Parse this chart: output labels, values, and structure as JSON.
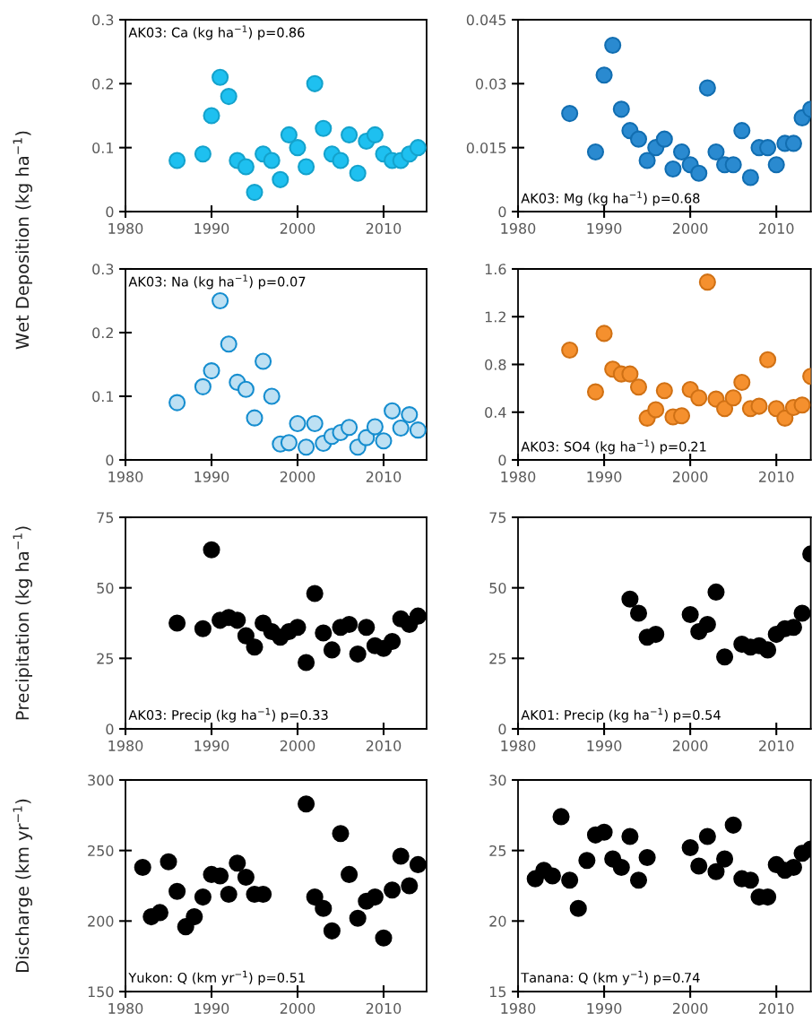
{
  "chart_data": [
    {
      "type": "scatter",
      "ylabel": "Wet Deposition (kg ha$^{−1}$)",
      "annotations": [
        "AK03: Ca (kg ha$^{−1}$) p=0.86"
      ],
      "marker": "circle",
      "xlim": [
        1980,
        2015
      ],
      "xticks": [
        1980,
        1990,
        2000,
        2010
      ],
      "ylim": [
        0,
        0.3
      ],
      "yticks": [
        0,
        0.1,
        0.2,
        0.3
      ],
      "x": [
        1986,
        1989,
        1990,
        1991,
        1992,
        1993,
        1994,
        1995,
        1996,
        1997,
        1998,
        1999,
        2000,
        2001,
        2002,
        2003,
        2004,
        2005,
        2006,
        2007,
        2008,
        2009,
        2010,
        2011,
        2012,
        2013,
        2014
      ],
      "series": [
        {
          "color": "#1ec0f0",
          "values": [
            0.08,
            0.09,
            0.15,
            0.21,
            0.18,
            0.08,
            0.07,
            0.03,
            0.09,
            0.08,
            0.05,
            0.12,
            0.1,
            0.07,
            0.2,
            0.13,
            0.09,
            0.08,
            0.12,
            0.06,
            0.11,
            0.12,
            0.09,
            0.08,
            0.08,
            0.09,
            0.1
          ]
        }
      ]
    },
    {
      "type": "scatter",
      "annotations": [
        "AK03: Mg (kg ha$^{−1}$) p=0.68"
      ],
      "marker": "circle",
      "xlim": [
        1980,
        2014
      ],
      "xticks": [
        1980,
        1990,
        2000,
        2010
      ],
      "ylim": [
        0,
        0.045
      ],
      "yticks": [
        0,
        0.015,
        0.03,
        0.045
      ],
      "x": [
        1986,
        1989,
        1990,
        1991,
        1992,
        1993,
        1994,
        1995,
        1996,
        1997,
        1998,
        1999,
        2000,
        2001,
        2002,
        2003,
        2004,
        2005,
        2006,
        2007,
        2008,
        2009,
        2010,
        2011,
        2012,
        2013,
        2014
      ],
      "series": [
        {
          "color": "#2a8ad0",
          "values": [
            0.023,
            0.014,
            0.032,
            0.039,
            0.024,
            0.019,
            0.017,
            0.012,
            0.015,
            0.017,
            0.01,
            0.014,
            0.011,
            0.009,
            0.029,
            0.014,
            0.011,
            0.011,
            0.019,
            0.008,
            0.015,
            0.015,
            0.011,
            0.016,
            0.016,
            0.022,
            0.024
          ]
        }
      ]
    },
    {
      "type": "scatter",
      "annotations": [
        "AK03: Na (kg ha$^{−1}$) p=0.07"
      ],
      "marker": "circle",
      "xlim": [
        1980,
        2015
      ],
      "xticks": [
        1980,
        1990,
        2000,
        2010
      ],
      "ylim": [
        0,
        0.3
      ],
      "yticks": [
        0,
        0.1,
        0.2,
        0.3
      ],
      "x": [
        1986,
        1989,
        1990,
        1991,
        1992,
        1993,
        1994,
        1995,
        1996,
        1997,
        1998,
        1999,
        2000,
        2001,
        2002,
        2003,
        2004,
        2005,
        2006,
        2007,
        2008,
        2009,
        2010,
        2011,
        2012,
        2013,
        2014
      ],
      "series": [
        {
          "color": "#bde0f3",
          "values": [
            0.09,
            0.115,
            0.14,
            0.25,
            0.182,
            0.122,
            0.111,
            0.066,
            0.155,
            0.1,
            0.025,
            0.027,
            0.057,
            0.02,
            0.057,
            0.026,
            0.037,
            0.043,
            0.051,
            0.02,
            0.035,
            0.052,
            0.03,
            0.077,
            0.05,
            0.071,
            0.047
          ]
        }
      ]
    },
    {
      "type": "scatter",
      "annotations": [
        "AK03: SO4 (kg ha$^{−1}$) p=0.21"
      ],
      "marker": "circle",
      "xlim": [
        1980,
        2014
      ],
      "xticks": [
        1980,
        1990,
        2000,
        2010
      ],
      "ylim": [
        0,
        1.6
      ],
      "yticks": [
        0,
        0.4,
        0.8,
        1.2,
        1.6
      ],
      "x": [
        1986,
        1989,
        1990,
        1991,
        1992,
        1993,
        1994,
        1995,
        1996,
        1997,
        1998,
        1999,
        2000,
        2001,
        2002,
        2003,
        2004,
        2005,
        2006,
        2007,
        2008,
        2009,
        2010,
        2011,
        2012,
        2013,
        2014
      ],
      "series": [
        {
          "color": "#f5902e",
          "values": [
            0.92,
            0.57,
            1.06,
            0.76,
            0.72,
            0.72,
            0.61,
            0.35,
            0.42,
            0.58,
            0.36,
            0.37,
            0.59,
            0.52,
            1.49,
            0.51,
            0.43,
            0.52,
            0.65,
            0.43,
            0.45,
            0.84,
            0.43,
            0.35,
            0.44,
            0.46,
            0.7
          ]
        }
      ]
    },
    {
      "type": "scatter",
      "ylabel": "Precipitation (kg ha$^{−1}$)",
      "annotations": [
        "AK03: Precip (kg ha$^{−1}$) p=0.33"
      ],
      "marker": "circle",
      "xlim": [
        1980,
        2015
      ],
      "xticks": [
        1980,
        1990,
        2000,
        2010
      ],
      "ylim": [
        0,
        75
      ],
      "yticks": [
        0,
        25,
        50,
        75
      ],
      "x": [
        1986,
        1989,
        1990,
        1991,
        1992,
        1993,
        1994,
        1995,
        1996,
        1997,
        1998,
        1999,
        2000,
        2001,
        2002,
        2003,
        2004,
        2005,
        2006,
        2007,
        2008,
        2009,
        2010,
        2011,
        2012,
        2013,
        2014
      ],
      "series": [
        {
          "color": "#000000",
          "values": [
            37.5,
            35.5,
            63.5,
            38.5,
            39.5,
            38.5,
            33,
            29,
            37.5,
            34.5,
            32.5,
            34.5,
            36,
            23.5,
            48,
            34,
            28,
            36,
            37,
            26.5,
            36,
            29.5,
            28.5,
            31,
            39,
            37,
            40
          ]
        }
      ]
    },
    {
      "type": "scatter",
      "annotations": [
        "AK01: Precip (kg ha$^{−1}$) p=0.54"
      ],
      "marker": "circle",
      "xlim": [
        1980,
        2014
      ],
      "xticks": [
        1980,
        1990,
        2000,
        2010
      ],
      "ylim": [
        0,
        75
      ],
      "yticks": [
        0,
        25,
        50,
        75
      ],
      "x": [
        1993,
        1994,
        1995,
        1996,
        2000,
        2001,
        2002,
        2003,
        2004,
        2006,
        2007,
        2008,
        2009,
        2010,
        2011,
        2012,
        2013,
        2014
      ],
      "series": [
        {
          "color": "#000000",
          "values": [
            46,
            41,
            32.5,
            33.5,
            40.5,
            34.5,
            37,
            48.5,
            25.5,
            30,
            29,
            29.5,
            28,
            33.5,
            35.5,
            36,
            41,
            62
          ]
        }
      ]
    },
    {
      "type": "scatter",
      "ylabel": "Discharge (km yr$^{−1}$)",
      "annotations": [
        "Yukon: Q (km yr$^{−1}$) p=0.51"
      ],
      "marker": "circle",
      "xlim": [
        1980,
        2015
      ],
      "xticks": [
        1980,
        1990,
        2000,
        2010
      ],
      "ylim": [
        150,
        300
      ],
      "yticks": [
        150,
        200,
        250,
        300
      ],
      "x": [
        1982,
        1983,
        1984,
        1985,
        1986,
        1987,
        1988,
        1989,
        1990,
        1991,
        1992,
        1993,
        1994,
        1995,
        1996,
        2001,
        2002,
        2003,
        2004,
        2005,
        2006,
        2007,
        2008,
        2009,
        2010,
        2011,
        2012,
        2013,
        2014
      ],
      "series": [
        {
          "color": "#000000",
          "values": [
            238,
            203,
            206,
            242,
            221,
            196,
            203,
            217,
            233,
            232,
            219,
            241,
            231,
            219,
            219,
            283,
            217,
            209,
            193,
            262,
            233,
            202,
            214,
            217,
            188,
            222,
            246,
            225,
            240
          ]
        }
      ]
    },
    {
      "type": "scatter",
      "annotations": [
        "Tanana: Q (km y$^{−1}$) p=0.74"
      ],
      "marker": "circle",
      "xlim": [
        1980,
        2014
      ],
      "xticks": [
        1980,
        1990,
        2000,
        2010
      ],
      "ylim": [
        15,
        30
      ],
      "yticks": [
        15,
        20,
        25,
        30
      ],
      "x": [
        1982,
        1983,
        1984,
        1985,
        1986,
        1987,
        1988,
        1989,
        1990,
        1991,
        1992,
        1993,
        1994,
        1995,
        2000,
        2001,
        2002,
        2003,
        2004,
        2005,
        2006,
        2007,
        2008,
        2009,
        2010,
        2011,
        2012,
        2013,
        2014
      ],
      "series": [
        {
          "color": "#000000",
          "values": [
            23.0,
            23.6,
            23.2,
            27.4,
            22.9,
            20.9,
            24.3,
            26.1,
            26.3,
            24.4,
            23.8,
            26.0,
            22.9,
            24.5,
            25.2,
            23.9,
            26.0,
            23.5,
            24.4,
            26.8,
            23.0,
            22.9,
            21.7,
            21.7,
            24.0,
            23.6,
            23.8,
            24.8,
            25.1
          ]
        }
      ]
    }
  ]
}
